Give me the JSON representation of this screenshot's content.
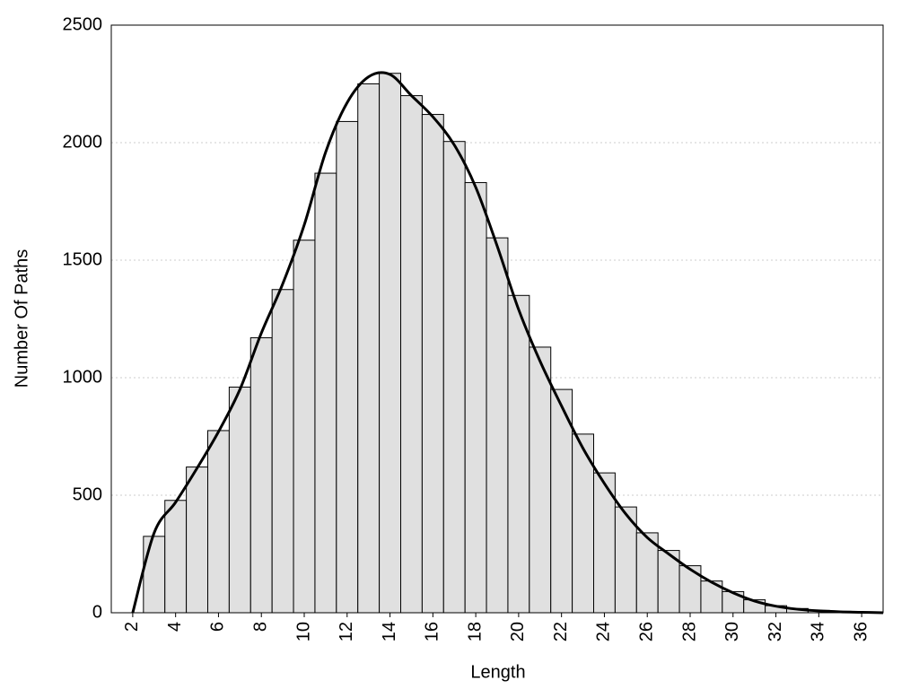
{
  "chart_data": {
    "type": "histogram",
    "x_label": "Length",
    "y_label": "Number Of Paths",
    "bins": [
      2.5,
      3.5,
      4.5,
      5.5,
      6.5,
      7.5,
      8.5,
      9.5,
      10.5,
      11.5,
      12.5,
      13.5,
      14.5,
      15.5,
      16.5,
      17.5,
      18.5,
      19.5,
      20.5,
      21.5,
      22.5,
      23.5,
      24.5,
      25.5,
      26.5,
      27.5,
      28.5,
      29.5,
      30.5,
      31.5,
      32.5,
      33.5,
      34.5,
      35.5,
      36.5
    ],
    "values": [
      325,
      478,
      620,
      775,
      960,
      1170,
      1375,
      1585,
      1870,
      2090,
      2250,
      2295,
      2200,
      2120,
      2005,
      1830,
      1595,
      1350,
      1130,
      950,
      760,
      595,
      450,
      340,
      265,
      200,
      135,
      90,
      55,
      30,
      18,
      10,
      6,
      3
    ],
    "color": "#e0e0e0",
    "line": {
      "color": "#000000",
      "x": [
        2,
        3,
        4,
        5,
        6,
        7,
        8,
        9,
        10,
        11,
        12,
        13,
        14,
        15,
        16,
        17,
        18,
        19,
        20,
        21,
        22,
        23,
        24,
        25,
        26,
        27,
        28,
        29,
        30,
        31,
        32,
        33,
        34,
        35,
        36,
        37
      ],
      "values": [
        0,
        340,
        470,
        615,
        770,
        950,
        1190,
        1400,
        1650,
        1960,
        2170,
        2280,
        2290,
        2200,
        2110,
        1990,
        1810,
        1560,
        1290,
        1070,
        880,
        700,
        550,
        420,
        320,
        250,
        185,
        130,
        85,
        50,
        28,
        15,
        8,
        4,
        2,
        0
      ]
    },
    "xlim": [
      1,
      37
    ],
    "ylim": [
      0,
      2500
    ],
    "xticks": [
      2,
      4,
      6,
      8,
      10,
      12,
      14,
      16,
      18,
      20,
      22,
      24,
      26,
      28,
      30,
      32,
      34,
      36
    ],
    "yticks": [
      0,
      500,
      1000,
      1500,
      2000,
      2500
    ],
    "grid": true
  }
}
